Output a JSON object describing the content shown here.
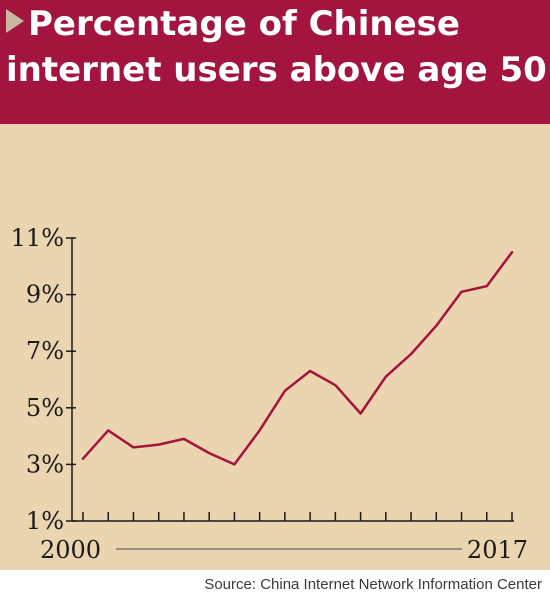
{
  "title": {
    "line1": "Percentage of Chinese",
    "line2": "internet users above age 50"
  },
  "source": "Source: China Internet Network Information Center",
  "colors": {
    "header_bg": "#a3153f",
    "panel_bg": "#ebd4b0",
    "line": "#a3153f",
    "marker": "#c9b7a4"
  },
  "icons": {
    "title_marker": "triangle-right-icon"
  },
  "chart_data": {
    "type": "line",
    "title": "Percentage of Chinese internet users above age 50",
    "xlabel": "",
    "ylabel": "",
    "x_tick_labels": [
      "2000",
      "2017"
    ],
    "y_tick_labels": [
      "1%",
      "3%",
      "5%",
      "7%",
      "9%",
      "11%"
    ],
    "ylim": [
      1,
      11
    ],
    "xlim": [
      2000,
      2017
    ],
    "grid": false,
    "series": [
      {
        "x": [
          2000,
          2001,
          2002,
          2003,
          2004,
          2005,
          2006,
          2007,
          2008,
          2009,
          2010,
          2011,
          2012,
          2013,
          2014,
          2015,
          2016,
          2017
        ],
        "values": [
          3.2,
          4.2,
          3.6,
          3.7,
          3.9,
          3.4,
          3.0,
          4.2,
          5.6,
          6.3,
          5.8,
          4.8,
          6.1,
          6.9,
          7.9,
          9.1,
          9.3,
          10.5
        ]
      }
    ]
  }
}
